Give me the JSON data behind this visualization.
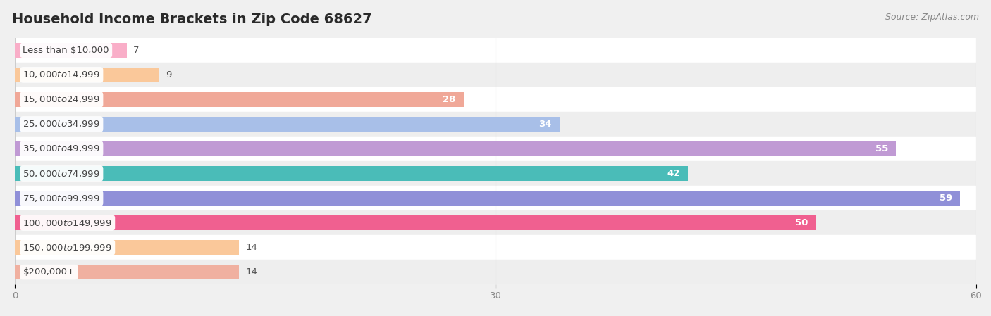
{
  "title": "Household Income Brackets in Zip Code 68627",
  "source": "Source: ZipAtlas.com",
  "categories": [
    "Less than $10,000",
    "$10,000 to $14,999",
    "$15,000 to $24,999",
    "$25,000 to $34,999",
    "$35,000 to $49,999",
    "$50,000 to $74,999",
    "$75,000 to $99,999",
    "$100,000 to $149,999",
    "$150,000 to $199,999",
    "$200,000+"
  ],
  "values": [
    7,
    9,
    28,
    34,
    55,
    42,
    59,
    50,
    14,
    14
  ],
  "bar_colors": [
    "#f9aec8",
    "#fac89a",
    "#f0a898",
    "#a8bfe8",
    "#c09ad4",
    "#4abcb8",
    "#9090d8",
    "#f06090",
    "#fac89a",
    "#f0b0a0"
  ],
  "xlim_min": 0,
  "xlim_max": 60,
  "xticks": [
    0,
    30,
    60
  ],
  "fig_width": 14.06,
  "fig_height": 4.49,
  "dpi": 100,
  "bar_height": 0.62,
  "title_fontsize": 14,
  "label_fontsize": 9.5,
  "value_fontsize": 9.5,
  "source_fontsize": 9,
  "row_even_color": "#ffffff",
  "row_odd_color": "#eeeeee",
  "bg_color": "#f0f0f0",
  "grid_color": "#cccccc",
  "tick_color": "#888888",
  "title_color": "#2a2a2a",
  "source_color": "#888888",
  "label_text_color": "#444444",
  "value_inside_color": "#ffffff",
  "value_outside_color": "#555555"
}
